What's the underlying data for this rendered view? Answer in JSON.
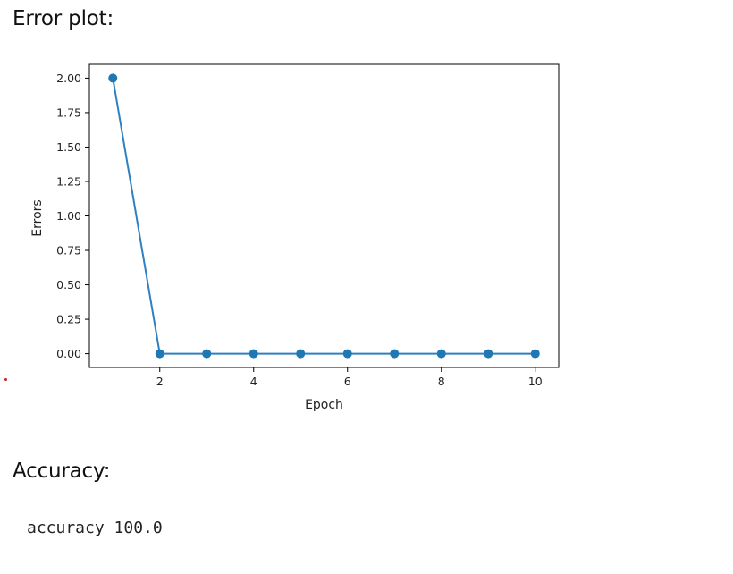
{
  "headings": {
    "error_plot": "Error plot:",
    "accuracy": "Accuracy:"
  },
  "output": {
    "accuracy_text": "accuracy 100.0"
  },
  "chart_data": {
    "type": "line",
    "title": "",
    "xlabel": "Epoch",
    "ylabel": "Errors",
    "x": [
      1,
      2,
      3,
      4,
      5,
      6,
      7,
      8,
      9,
      10
    ],
    "series": [
      {
        "values": [
          2,
          0,
          0,
          0,
          0,
          0,
          0,
          0,
          0,
          0
        ]
      }
    ],
    "xlim": [
      0.5,
      10.5
    ],
    "ylim": [
      -0.1,
      2.1
    ],
    "xticks": [
      2,
      4,
      6,
      8,
      10
    ],
    "xtick_labels": [
      "2",
      "4",
      "6",
      "8",
      "10"
    ],
    "yticks": [
      0,
      0.25,
      0.5,
      0.75,
      1.0,
      1.25,
      1.5,
      1.75,
      2.0
    ],
    "ytick_labels": [
      "0.00",
      "0.25",
      "0.50",
      "0.75",
      "1.00",
      "1.25",
      "1.50",
      "1.75",
      "2.00"
    ],
    "grid": false,
    "marker": "circle",
    "line_color": "#2f7fc1",
    "marker_color": "#1f77b4"
  }
}
